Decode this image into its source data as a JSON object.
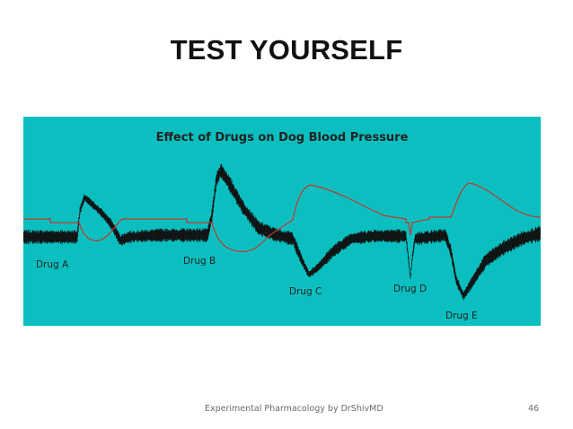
{
  "slide": {
    "title": "TEST YOURSELF",
    "footer": "Experimental Pharmacology by DrShivMD",
    "page_number": "46"
  },
  "figure": {
    "title": "Effect of Drugs on Dog Blood Pressure",
    "background_color": "#0bbfc0",
    "trace_color": "#111111",
    "red_trace_color": "#c0392b",
    "drugs": [
      {
        "label": "Drug A"
      },
      {
        "label": "Drug B"
      },
      {
        "label": "Drug C"
      },
      {
        "label": "Drug D"
      },
      {
        "label": "Drug E"
      }
    ]
  }
}
